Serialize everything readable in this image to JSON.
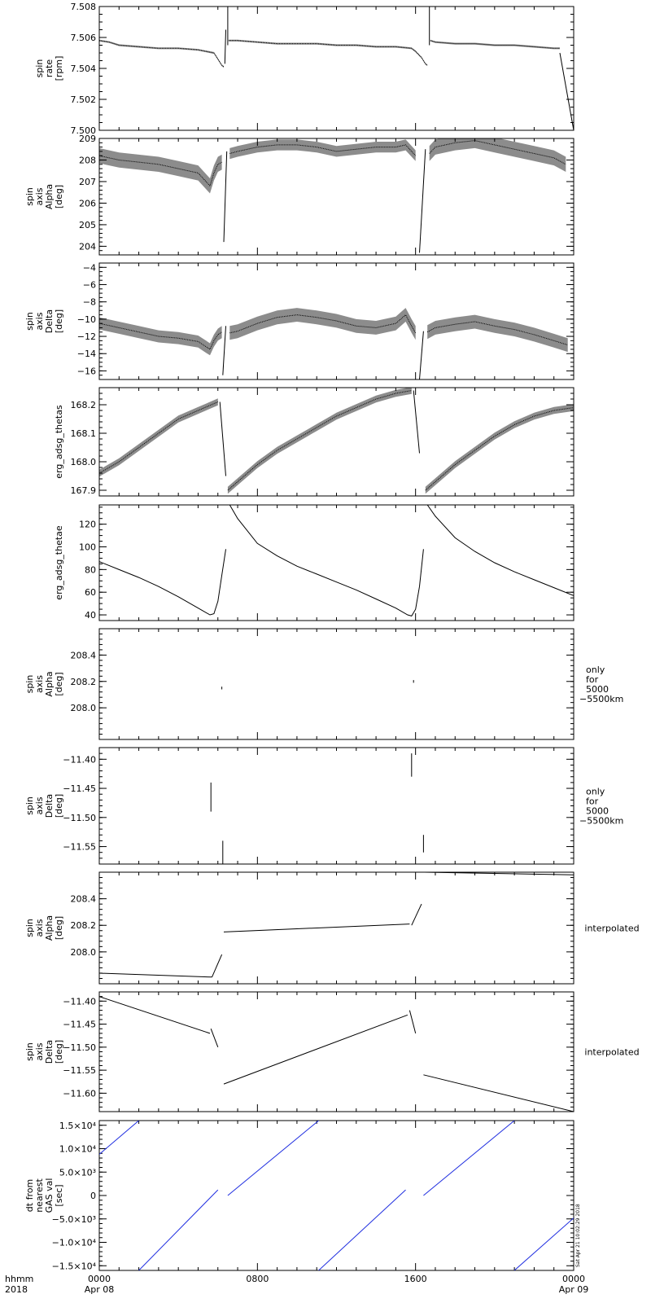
{
  "figure": {
    "xaxis": {
      "range": [
        0,
        24
      ],
      "major_ticks": [
        0,
        8,
        16,
        24
      ],
      "minor_step": 1,
      "tick_labels": [
        {
          "x": 0,
          "line1": "0000",
          "line2": "Apr 08"
        },
        {
          "x": 8,
          "line1": "0800",
          "line2": ""
        },
        {
          "x": 16,
          "line1": "1600",
          "line2": ""
        },
        {
          "x": 24,
          "line1": "0000",
          "line2": "Apr 09"
        }
      ],
      "corner_label": {
        "line1": "hhmm",
        "line2": "2018"
      }
    },
    "stamp": "Sat Apr 21 10:02:29 2018"
  },
  "chart_data": [
    {
      "id": "spin-rate",
      "type": "scatter",
      "ylabel": [
        "spin",
        "rate",
        "[rpm]"
      ],
      "ylim": [
        7.5,
        7.508
      ],
      "ticks": [
        7.5,
        7.502,
        7.504,
        7.506,
        7.508
      ],
      "tick_labels": [
        "7.500",
        "7.502",
        "7.504",
        "7.506",
        "7.508"
      ],
      "minor": 0.0005,
      "note": [],
      "color": "#000000",
      "series": [
        {
          "x": [
            0,
            0.5,
            1,
            2,
            3,
            4,
            5,
            5.8,
            6.0,
            6.2,
            6.3
          ],
          "y": [
            7.5058,
            7.5057,
            7.5055,
            7.5054,
            7.5053,
            7.5053,
            7.5052,
            7.505,
            7.5046,
            7.5042,
            7.5041
          ],
          "spread": 6e-05
        },
        {
          "x": [
            6.35,
            6.4
          ],
          "y": [
            7.5043,
            7.5065
          ],
          "spread": 0
        },
        {
          "x": [
            6.5,
            6.5
          ],
          "y": [
            7.5055,
            7.508
          ],
          "spread": 0
        },
        {
          "x": [
            6.55,
            7,
            8,
            9,
            10,
            11,
            12,
            13,
            14,
            15,
            15.8,
            16,
            16.3,
            16.5,
            16.6
          ],
          "y": [
            7.5058,
            7.5058,
            7.5057,
            7.5056,
            7.5056,
            7.5056,
            7.5055,
            7.5055,
            7.5054,
            7.5054,
            7.5053,
            7.5051,
            7.5047,
            7.5043,
            7.5042
          ],
          "spread": 6e-05
        },
        {
          "x": [
            16.7,
            16.7
          ],
          "y": [
            7.5055,
            7.508
          ],
          "spread": 0
        },
        {
          "x": [
            16.75,
            17,
            18,
            19,
            20,
            21,
            22,
            23,
            23.3
          ],
          "y": [
            7.5058,
            7.5057,
            7.5056,
            7.5056,
            7.5055,
            7.5055,
            7.5054,
            7.5053,
            7.5053
          ],
          "spread": 6e-05
        },
        {
          "x": [
            23.3,
            24
          ],
          "y": [
            7.505,
            7.5
          ],
          "spread": 0
        }
      ]
    },
    {
      "id": "spin-axis-alpha",
      "type": "scatter",
      "ylabel": [
        "spin",
        "axis",
        "Alpha",
        "[deg]"
      ],
      "ylim": [
        203.6,
        209.0
      ],
      "ticks": [
        204,
        205,
        206,
        207,
        208,
        209
      ],
      "tick_labels": [
        "204",
        "205",
        "206",
        "207",
        "208",
        "209"
      ],
      "minor": 0.2,
      "note": [],
      "color": "#000000",
      "series": [
        {
          "x": [
            0,
            1,
            2,
            3,
            4,
            5,
            5.4,
            5.6,
            5.8,
            6.0,
            6.2
          ],
          "y": [
            208.2,
            208.0,
            207.9,
            207.8,
            207.6,
            207.4,
            207.0,
            206.8,
            207.4,
            207.8,
            207.9
          ],
          "spread": 0.35
        },
        {
          "x": [
            6.3,
            6.45
          ],
          "y": [
            204.2,
            208.4
          ],
          "spread": 0
        },
        {
          "x": [
            6.6,
            7,
            8,
            9,
            10,
            11,
            12,
            13,
            14,
            15,
            15.5,
            15.8,
            16.0
          ],
          "y": [
            208.3,
            208.4,
            208.6,
            208.7,
            208.7,
            208.6,
            208.4,
            208.5,
            208.6,
            208.6,
            208.7,
            208.4,
            208.2
          ],
          "spread": 0.25
        },
        {
          "x": [
            16.2,
            16.5
          ],
          "y": [
            203.7,
            208.5
          ],
          "spread": 0
        },
        {
          "x": [
            16.7,
            17,
            18,
            19,
            20,
            21,
            22,
            23,
            23.6
          ],
          "y": [
            208.3,
            208.6,
            208.8,
            208.9,
            208.7,
            208.5,
            208.3,
            208.1,
            207.8
          ],
          "spread": 0.35
        },
        {
          "x": [
            24,
            24
          ],
          "y": [
            207.2,
            207.6
          ],
          "spread": 0
        }
      ]
    },
    {
      "id": "spin-axis-delta",
      "type": "scatter",
      "ylabel": [
        "spin",
        "axis",
        "Delta",
        "[deg]"
      ],
      "ylim": [
        -17,
        -3.5
      ],
      "ticks": [
        -16,
        -14,
        -12,
        -10,
        -8,
        -6,
        -4
      ],
      "tick_labels": [
        "−16",
        "−14",
        "−12",
        "−10",
        "−8",
        "−6",
        "−4"
      ],
      "minor": 0.5,
      "note": [],
      "color": "#000000",
      "series": [
        {
          "x": [
            0,
            1,
            2,
            3,
            4,
            5,
            5.4,
            5.6,
            5.8,
            6.0,
            6.2
          ],
          "y": [
            -10.5,
            -11.0,
            -11.5,
            -12.0,
            -12.2,
            -12.6,
            -13.2,
            -13.5,
            -12.5,
            -11.8,
            -11.5
          ],
          "spread": 0.7
        },
        {
          "x": [
            6.25,
            6.4
          ],
          "y": [
            -16.5,
            -10.8
          ],
          "spread": 0
        },
        {
          "x": [
            6.6,
            7,
            8,
            9,
            10,
            11,
            12,
            13,
            14,
            15,
            15.5,
            15.8,
            16.0
          ],
          "y": [
            -11.6,
            -11.4,
            -10.5,
            -9.8,
            -9.5,
            -9.8,
            -10.2,
            -10.8,
            -11.0,
            -10.5,
            -9.5,
            -10.8,
            -11.6
          ],
          "spread": 0.8
        },
        {
          "x": [
            16.2,
            16.4
          ],
          "y": [
            -17.0,
            -11.4
          ],
          "spread": 0
        },
        {
          "x": [
            16.6,
            17,
            18,
            19,
            20,
            21,
            22,
            23,
            23.7
          ],
          "y": [
            -11.5,
            -11.0,
            -10.6,
            -10.3,
            -10.8,
            -11.2,
            -11.8,
            -12.5,
            -13.0
          ],
          "spread": 0.8
        },
        {
          "x": [
            24,
            24
          ],
          "y": [
            -13.4,
            -14.0
          ],
          "spread": 0
        }
      ]
    },
    {
      "id": "erg-adsg-thetas",
      "type": "scatter",
      "ylabel": [
        "erg_adsg_thetas"
      ],
      "ylim": [
        167.88,
        168.26
      ],
      "ticks": [
        167.9,
        168.0,
        168.1,
        168.2
      ],
      "tick_labels": [
        "167.9",
        "168.0",
        "168.1",
        "168.2"
      ],
      "minor": 0.02,
      "note": [],
      "color": "#000000",
      "series": [
        {
          "x": [
            0,
            1,
            2,
            3,
            4,
            5,
            6.0
          ],
          "y": [
            167.96,
            168.0,
            168.05,
            168.1,
            168.15,
            168.18,
            168.21
          ],
          "spread": 0.012
        },
        {
          "x": [
            6.1,
            6.4
          ],
          "y": [
            168.21,
            167.95
          ],
          "spread": 0
        },
        {
          "x": [
            6.5,
            7,
            8,
            9,
            10,
            11,
            12,
            13,
            14,
            15,
            15.8
          ],
          "y": [
            167.9,
            167.93,
            167.99,
            168.04,
            168.08,
            168.12,
            168.16,
            168.19,
            168.22,
            168.24,
            168.25
          ],
          "spread": 0.012
        },
        {
          "x": [
            15.9,
            16.2
          ],
          "y": [
            168.25,
            168.03
          ],
          "spread": 0
        },
        {
          "x": [
            16.5,
            17,
            18,
            19,
            20,
            21,
            22,
            23,
            24
          ],
          "y": [
            167.9,
            167.93,
            167.99,
            168.04,
            168.09,
            168.13,
            168.16,
            168.18,
            168.19
          ],
          "spread": 0.012
        }
      ]
    },
    {
      "id": "erg-adsg-thetae",
      "type": "line",
      "ylabel": [
        "erg_adsg_thetae"
      ],
      "ylim": [
        35,
        137
      ],
      "ticks": [
        40,
        60,
        80,
        100,
        120
      ],
      "tick_labels": [
        "40",
        "60",
        "80",
        "100",
        "120"
      ],
      "minor": 5,
      "note": [],
      "color": "#000000",
      "series": [
        {
          "x": [
            0,
            1,
            2,
            3,
            4,
            5,
            5.6,
            5.8,
            6.0,
            6.2,
            6.4
          ],
          "y": [
            87,
            80,
            73,
            65,
            56,
            46,
            40,
            41,
            52,
            75,
            98
          ],
          "spread": 0
        },
        {
          "x": [
            6.6,
            7,
            8,
            9,
            10,
            11,
            12,
            13,
            14,
            15,
            15.6,
            15.8,
            16.0,
            16.2,
            16.4
          ],
          "y": [
            137,
            125,
            103,
            92,
            83,
            76,
            69,
            62,
            54,
            46,
            40,
            39,
            45,
            65,
            98
          ],
          "spread": 0
        },
        {
          "x": [
            16.6,
            17,
            18,
            19,
            20,
            21,
            22,
            23,
            24
          ],
          "y": [
            137,
            127,
            108,
            96,
            86,
            78,
            71,
            64,
            57
          ],
          "spread": 0
        }
      ]
    },
    {
      "id": "spin-axis-alpha-5000km",
      "type": "scatter",
      "ylabel": [
        "spin",
        "axis",
        "Alpha",
        "[deg]"
      ],
      "ylim": [
        207.76,
        208.6
      ],
      "ticks": [
        208.0,
        208.2,
        208.4
      ],
      "tick_labels": [
        "208.0",
        "208.2",
        "208.4"
      ],
      "minor": 0.04,
      "note": [
        "only",
        "for",
        "5000",
        "−5500km"
      ],
      "color": "#000000",
      "series": [
        {
          "x": [
            6.2,
            6.2
          ],
          "y": [
            208.14,
            208.16
          ],
          "spread": 0
        },
        {
          "x": [
            15.9,
            15.9
          ],
          "y": [
            208.19,
            208.21
          ],
          "spread": 0
        }
      ]
    },
    {
      "id": "spin-axis-delta-5000km",
      "type": "scatter",
      "ylabel": [
        "spin",
        "axis",
        "Delta",
        "[deg]"
      ],
      "ylim": [
        -11.58,
        -11.38
      ],
      "ticks": [
        -11.55,
        -11.5,
        -11.45,
        -11.4
      ],
      "tick_labels": [
        "−11.55",
        "−11.50",
        "−11.45",
        "−11.40"
      ],
      "minor": 0.01,
      "note": [
        "only",
        "for",
        "5000",
        "−5500km"
      ],
      "color": "#000000",
      "series": [
        {
          "x": [
            5.65,
            5.65
          ],
          "y": [
            -11.44,
            -11.49
          ],
          "spread": 0
        },
        {
          "x": [
            6.25,
            6.25
          ],
          "y": [
            -11.54,
            -11.58
          ],
          "spread": 0
        },
        {
          "x": [
            15.8,
            15.8
          ],
          "y": [
            -11.39,
            -11.43
          ],
          "spread": 0
        },
        {
          "x": [
            16.4,
            16.4
          ],
          "y": [
            -11.53,
            -11.56
          ],
          "spread": 0
        }
      ]
    },
    {
      "id": "spin-axis-alpha-interp",
      "type": "line",
      "ylabel": [
        "spin",
        "axis",
        "Alpha",
        "[deg]"
      ],
      "ylim": [
        207.76,
        208.6
      ],
      "ticks": [
        208.0,
        208.2,
        208.4
      ],
      "tick_labels": [
        "208.0",
        "208.2",
        "208.4"
      ],
      "minor": 0.04,
      "note": [
        "interpolated"
      ],
      "color": "#000000",
      "series": [
        {
          "x": [
            0,
            5.7
          ],
          "y": [
            207.84,
            207.81
          ],
          "spread": 0
        },
        {
          "x": [
            5.7,
            6.2
          ],
          "y": [
            207.81,
            207.98
          ],
          "spread": 0
        },
        {
          "x": [
            6.3,
            15.7
          ],
          "y": [
            208.15,
            208.21
          ],
          "spread": 0
        },
        {
          "x": [
            15.8,
            16.3
          ],
          "y": [
            208.2,
            208.36
          ],
          "spread": 0
        },
        {
          "x": [
            16.45,
            24
          ],
          "y": [
            208.6,
            208.58
          ],
          "spread": 0
        }
      ]
    },
    {
      "id": "spin-axis-delta-interp",
      "type": "line",
      "ylabel": [
        "spin",
        "axis",
        "Delta",
        "[deg]"
      ],
      "ylim": [
        -11.64,
        -11.38
      ],
      "ticks": [
        -11.6,
        -11.55,
        -11.5,
        -11.45,
        -11.4
      ],
      "tick_labels": [
        "−11.60",
        "−11.55",
        "−11.50",
        "−11.45",
        "−11.40"
      ],
      "minor": 0.01,
      "note": [
        "interpolated"
      ],
      "color": "#000000",
      "series": [
        {
          "x": [
            0,
            5.6
          ],
          "y": [
            -11.39,
            -11.47
          ],
          "spread": 0
        },
        {
          "x": [
            5.65,
            6.0
          ],
          "y": [
            -11.46,
            -11.5
          ],
          "spread": 0
        },
        {
          "x": [
            6.3,
            15.6
          ],
          "y": [
            -11.58,
            -11.43
          ],
          "spread": 0
        },
        {
          "x": [
            15.7,
            16.0
          ],
          "y": [
            -11.42,
            -11.47
          ],
          "spread": 0
        },
        {
          "x": [
            16.4,
            24
          ],
          "y": [
            -11.56,
            -11.64
          ],
          "spread": 0
        }
      ]
    },
    {
      "id": "dt-from-nearest-gas",
      "type": "line",
      "ylabel": [
        "dt from",
        "nearest",
        "GAS val",
        "[sec]"
      ],
      "ylim": [
        -16000,
        16000
      ],
      "ticks": [
        -15000,
        -10000,
        -5000,
        0,
        5000,
        10000,
        15000
      ],
      "tick_labels": [
        "−1.5×10⁴",
        "−1.0×10⁴",
        "−5.0×10³",
        "0",
        "5.0×10³",
        "1.0×10⁴",
        "1.5×10⁴"
      ],
      "minor": 1000,
      "note": [],
      "color": "#1f2ee0",
      "series": [
        {
          "x": [
            0,
            2.0
          ],
          "y": [
            8800,
            16000
          ],
          "spread": 0
        },
        {
          "x": [
            2.0,
            6.0
          ],
          "y": [
            -16000,
            1200
          ],
          "spread": 0
        },
        {
          "x": [
            6.5,
            11.1
          ],
          "y": [
            0,
            16000
          ],
          "spread": 0
        },
        {
          "x": [
            11.1,
            15.5
          ],
          "y": [
            -16000,
            1200
          ],
          "spread": 0
        },
        {
          "x": [
            16.4,
            21.0
          ],
          "y": [
            0,
            16000
          ],
          "spread": 0
        },
        {
          "x": [
            21.0,
            24
          ],
          "y": [
            -16000,
            -4800
          ],
          "spread": 0
        }
      ]
    }
  ]
}
